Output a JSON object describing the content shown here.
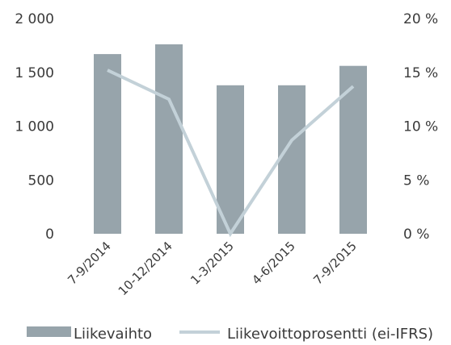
{
  "chart_data": {
    "type": "bar",
    "categories": [
      "7-9/2014",
      "10-12/2014",
      "1-3/2015",
      "4-6/2015",
      "7-9/2015"
    ],
    "series": [
      {
        "name": "Liikevaihto",
        "type": "bar",
        "axis": "left",
        "color": "#97a4ab",
        "values": [
          1670,
          1760,
          1380,
          1380,
          1560
        ]
      },
      {
        "name": "Liikevoittoprosentti (ei-IFRS)",
        "type": "line",
        "axis": "right",
        "color": "#c3d1d8",
        "values": [
          15.2,
          12.5,
          0.0,
          8.7,
          13.7
        ]
      }
    ],
    "y_left": {
      "min": 0,
      "max": 2000,
      "ticks": [
        0,
        500,
        1000,
        1500,
        2000
      ],
      "tick_labels": [
        "0",
        "500",
        "1 000",
        "1 500",
        "2 000"
      ]
    },
    "y_right": {
      "min": 0,
      "max": 20,
      "ticks": [
        0,
        5,
        10,
        15,
        20
      ],
      "tick_labels": [
        "0 %",
        "5 %",
        "10 %",
        "15 %",
        "20 %"
      ]
    },
    "grid": false,
    "legend": "bottom",
    "title": "",
    "xlabel": "",
    "ylabel": ""
  }
}
